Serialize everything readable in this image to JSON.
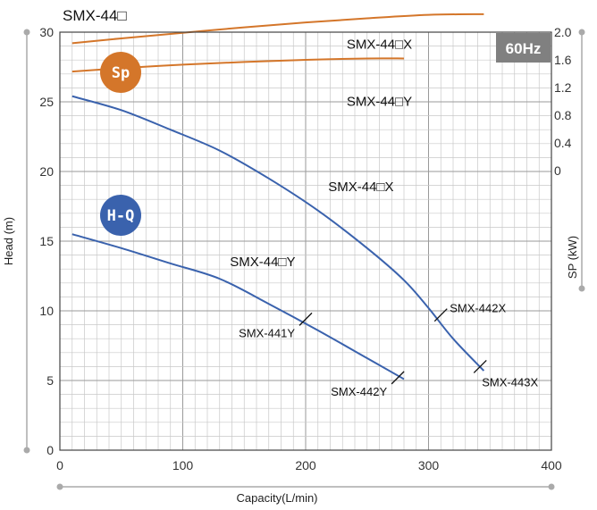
{
  "chart_data": {
    "type": "line",
    "title": "SMX-44□",
    "xlabel": "Capacity(L/min)",
    "ylabel": "Head (m)",
    "y2label": "SP (kW)",
    "frequency": "60Hz",
    "xlim": [
      0,
      400
    ],
    "ylim": [
      0,
      30
    ],
    "y2lim": [
      0,
      2.0
    ],
    "x_ticks": [
      "0",
      "100",
      "200",
      "300",
      "400"
    ],
    "y_ticks": [
      "0",
      "5",
      "10",
      "15",
      "20",
      "25",
      "30"
    ],
    "y2_ticks": [
      "0",
      "0.4",
      "0.8",
      "1.2",
      "1.6",
      "2.0"
    ],
    "grid": true,
    "badges": {
      "sp": "Sp",
      "hq": "H-Q"
    },
    "colors": {
      "sp_curve": "#d4762a",
      "hq_curve": "#3a62ad",
      "sp_badge": "#d4762a",
      "hq_badge": "#3a62ad",
      "hz_badge": "#808080",
      "grid": "#c8c8c8"
    },
    "series": [
      {
        "name": "SMX-44□X",
        "group": "H-Q",
        "x": [
          10,
          50,
          90,
          130,
          170,
          210,
          250,
          280,
          300,
          320,
          345
        ],
        "y": [
          25.4,
          24.4,
          23.0,
          21.5,
          19.5,
          17.2,
          14.5,
          12.2,
          10.2,
          8.0,
          5.7
        ]
      },
      {
        "name": "SMX-44□Y",
        "group": "H-Q",
        "x": [
          10,
          50,
          90,
          130,
          170,
          210,
          250,
          280
        ],
        "y": [
          15.5,
          14.5,
          13.4,
          12.3,
          10.5,
          8.6,
          6.6,
          5.1
        ]
      },
      {
        "name": "SMX-44□X",
        "group": "Sp",
        "x": [
          10,
          50,
          100,
          150,
          200,
          250,
          300,
          345
        ],
        "y": [
          1.84,
          1.91,
          1.99,
          2.07,
          2.14,
          2.2,
          2.25,
          2.26
        ]
      },
      {
        "name": "SMX-44□Y",
        "group": "Sp",
        "x": [
          10,
          50,
          100,
          150,
          200,
          250,
          280
        ],
        "y": [
          1.43,
          1.48,
          1.53,
          1.57,
          1.6,
          1.62,
          1.62
        ]
      }
    ],
    "curve_labels": [
      {
        "text": "SMX-44□X",
        "x": 260,
        "y": 28.8,
        "axis": "left"
      },
      {
        "text": "SMX-44□Y",
        "x": 260,
        "y": 24.7,
        "axis": "left"
      },
      {
        "text": "SMX-44□X",
        "x": 245,
        "y": 18.6,
        "axis": "left"
      },
      {
        "text": "SMX-44□Y",
        "x": 165,
        "y": 13.2,
        "axis": "left"
      }
    ],
    "operating_points": [
      {
        "label": "SMX-441Y",
        "x": 200,
        "y": 9.4,
        "anchor": "end"
      },
      {
        "label": "SMX-442Y",
        "x": 275,
        "y": 5.2,
        "anchor": "end"
      },
      {
        "label": "SMX-442X",
        "x": 310,
        "y": 9.7,
        "anchor": "start"
      },
      {
        "label": "SMX-443X",
        "x": 342,
        "y": 6.0,
        "anchor": "start"
      }
    ]
  }
}
